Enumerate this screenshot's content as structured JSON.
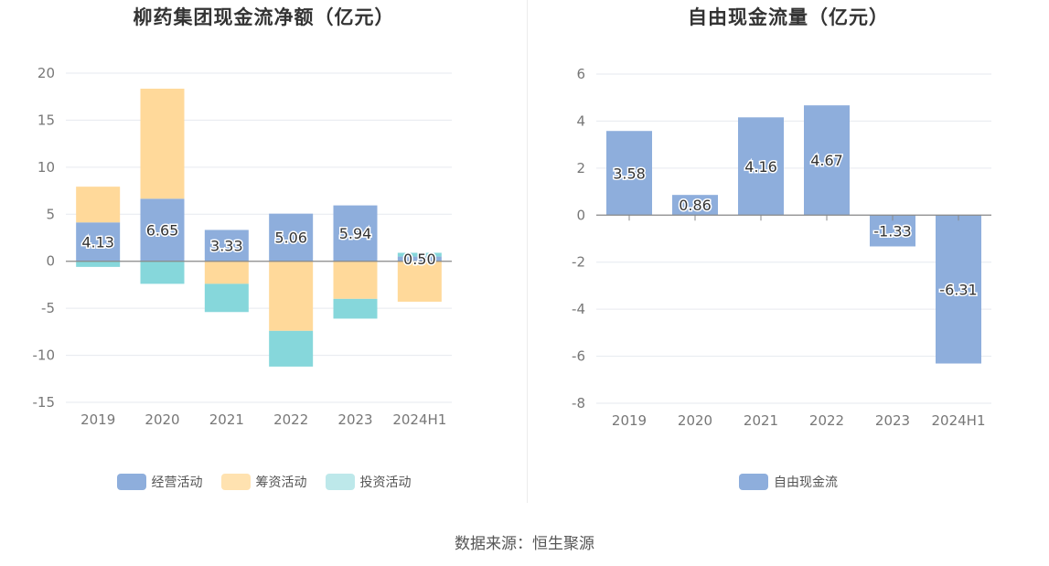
{
  "source": "数据来源：恒生聚源",
  "colors": {
    "operating": "#8eaedc",
    "financing": "#ffd99a",
    "investing": "#86d7db",
    "fcf": "#8eaedc"
  },
  "chart_data": [
    {
      "type": "bar",
      "stacked": true,
      "title": "柳药集团现金流净额（亿元）",
      "categories": [
        "2019",
        "2020",
        "2021",
        "2022",
        "2023",
        "2024H1"
      ],
      "ylim": [
        -15,
        20
      ],
      "yticks": [
        "20",
        "15",
        "10",
        "5",
        "0",
        "-5",
        "-10",
        "-15"
      ],
      "legend_position": "bottom",
      "series": [
        {
          "name": "经营活动",
          "values": [
            4.13,
            6.65,
            3.33,
            5.06,
            5.94,
            0.5
          ],
          "labels": [
            "4.13",
            "6.65",
            "3.33",
            "5.06",
            "5.94",
            "0.50"
          ]
        },
        {
          "name": "筹资活动",
          "values": [
            3.8,
            11.7,
            -2.4,
            -7.4,
            -4.0,
            -4.3
          ]
        },
        {
          "name": "投资活动",
          "values": [
            -0.6,
            -2.4,
            -3.0,
            -3.8,
            -2.1,
            0.4
          ]
        }
      ]
    },
    {
      "type": "bar",
      "title": "自由现金流量（亿元）",
      "categories": [
        "2019",
        "2020",
        "2021",
        "2022",
        "2023",
        "2024H1"
      ],
      "ylim": [
        -8,
        6
      ],
      "yticks": [
        "6",
        "4",
        "2",
        "0",
        "-2",
        "-4",
        "-6",
        "-8"
      ],
      "legend_position": "bottom",
      "series": [
        {
          "name": "自由现金流",
          "values": [
            3.58,
            0.86,
            4.16,
            4.67,
            -1.33,
            -6.31
          ],
          "labels": [
            "3.58",
            "0.86",
            "4.16",
            "4.67",
            "-1.33",
            "-6.31"
          ]
        }
      ]
    }
  ]
}
